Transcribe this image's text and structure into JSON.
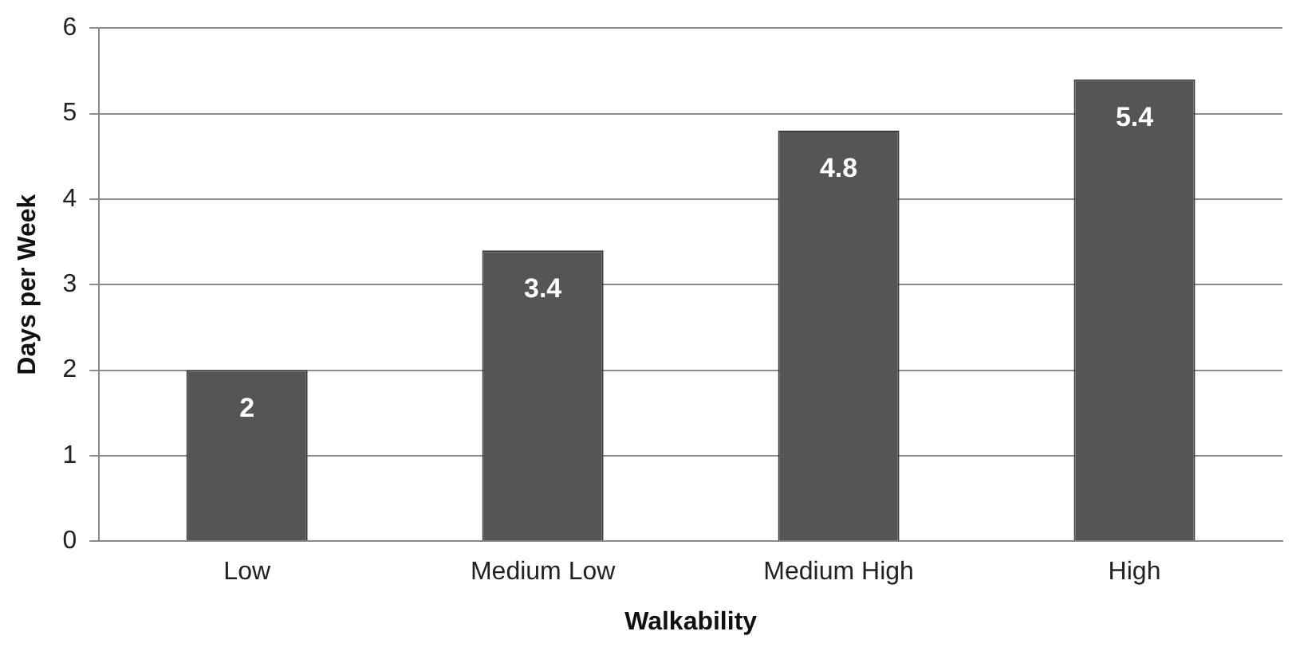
{
  "chart_data": {
    "type": "bar",
    "xlabel": "Walkability",
    "ylabel": "Days per Week",
    "categories": [
      "Low",
      "Medium Low",
      "Medium High",
      "High"
    ],
    "values": [
      2,
      3.4,
      4.8,
      5.4
    ],
    "color": "#555555",
    "ylim": [
      0,
      6
    ],
    "yticks": [
      0,
      1,
      2,
      3,
      4,
      5,
      6
    ],
    "grid": "y",
    "data_labels": true,
    "legend": false
  }
}
